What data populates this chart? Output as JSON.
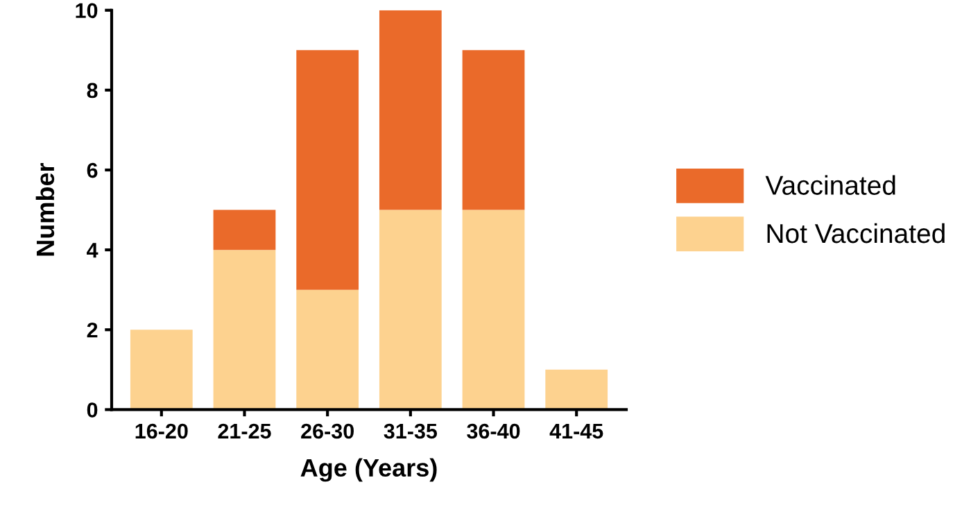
{
  "chart_data": {
    "type": "bar",
    "stacked": true,
    "xlabel": "Age (Years)",
    "ylabel": "Number",
    "categories": [
      "16-20",
      "21-25",
      "26-30",
      "31-35",
      "36-40",
      "41-45"
    ],
    "series": [
      {
        "name": "Not Vaccinated",
        "color": "#fdd28f",
        "values": [
          2,
          4,
          3,
          5,
          5,
          1
        ]
      },
      {
        "name": "Vaccinated",
        "color": "#ea6a2a",
        "values": [
          null,
          1,
          6,
          5,
          4,
          null
        ]
      }
    ],
    "ylim": [
      0,
      10
    ],
    "yticks": [
      0,
      2,
      4,
      6,
      8,
      10
    ],
    "grid": false,
    "legend": "right"
  }
}
